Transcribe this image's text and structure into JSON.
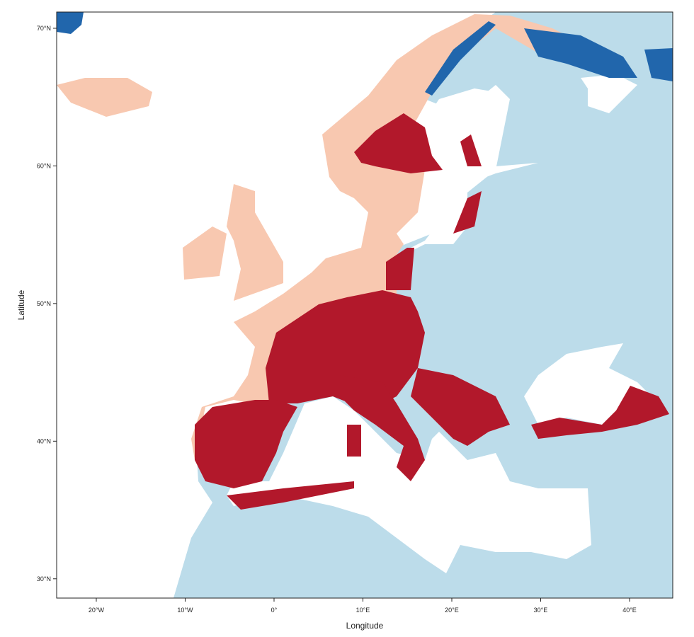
{
  "map": {
    "xlabel": "Longitude",
    "ylabel": "Latitude",
    "xlim": [
      -24.46,
      44.86
    ],
    "ylim": [
      28.6,
      71.18
    ],
    "xticks": [
      {
        "value": -20,
        "label": "20°W"
      },
      {
        "value": -10,
        "label": "10°W"
      },
      {
        "value": 0,
        "label": "0°"
      },
      {
        "value": 10,
        "label": "10°E"
      },
      {
        "value": 20,
        "label": "20°E"
      },
      {
        "value": 30,
        "label": "30°E"
      },
      {
        "value": 40,
        "label": "40°E"
      }
    ],
    "yticks": [
      {
        "value": 30,
        "label": "30°N"
      },
      {
        "value": 40,
        "label": "40°N"
      },
      {
        "value": 50,
        "label": "50°N"
      },
      {
        "value": 60,
        "label": "60°N"
      },
      {
        "value": 70,
        "label": "70°N"
      }
    ]
  }
}
